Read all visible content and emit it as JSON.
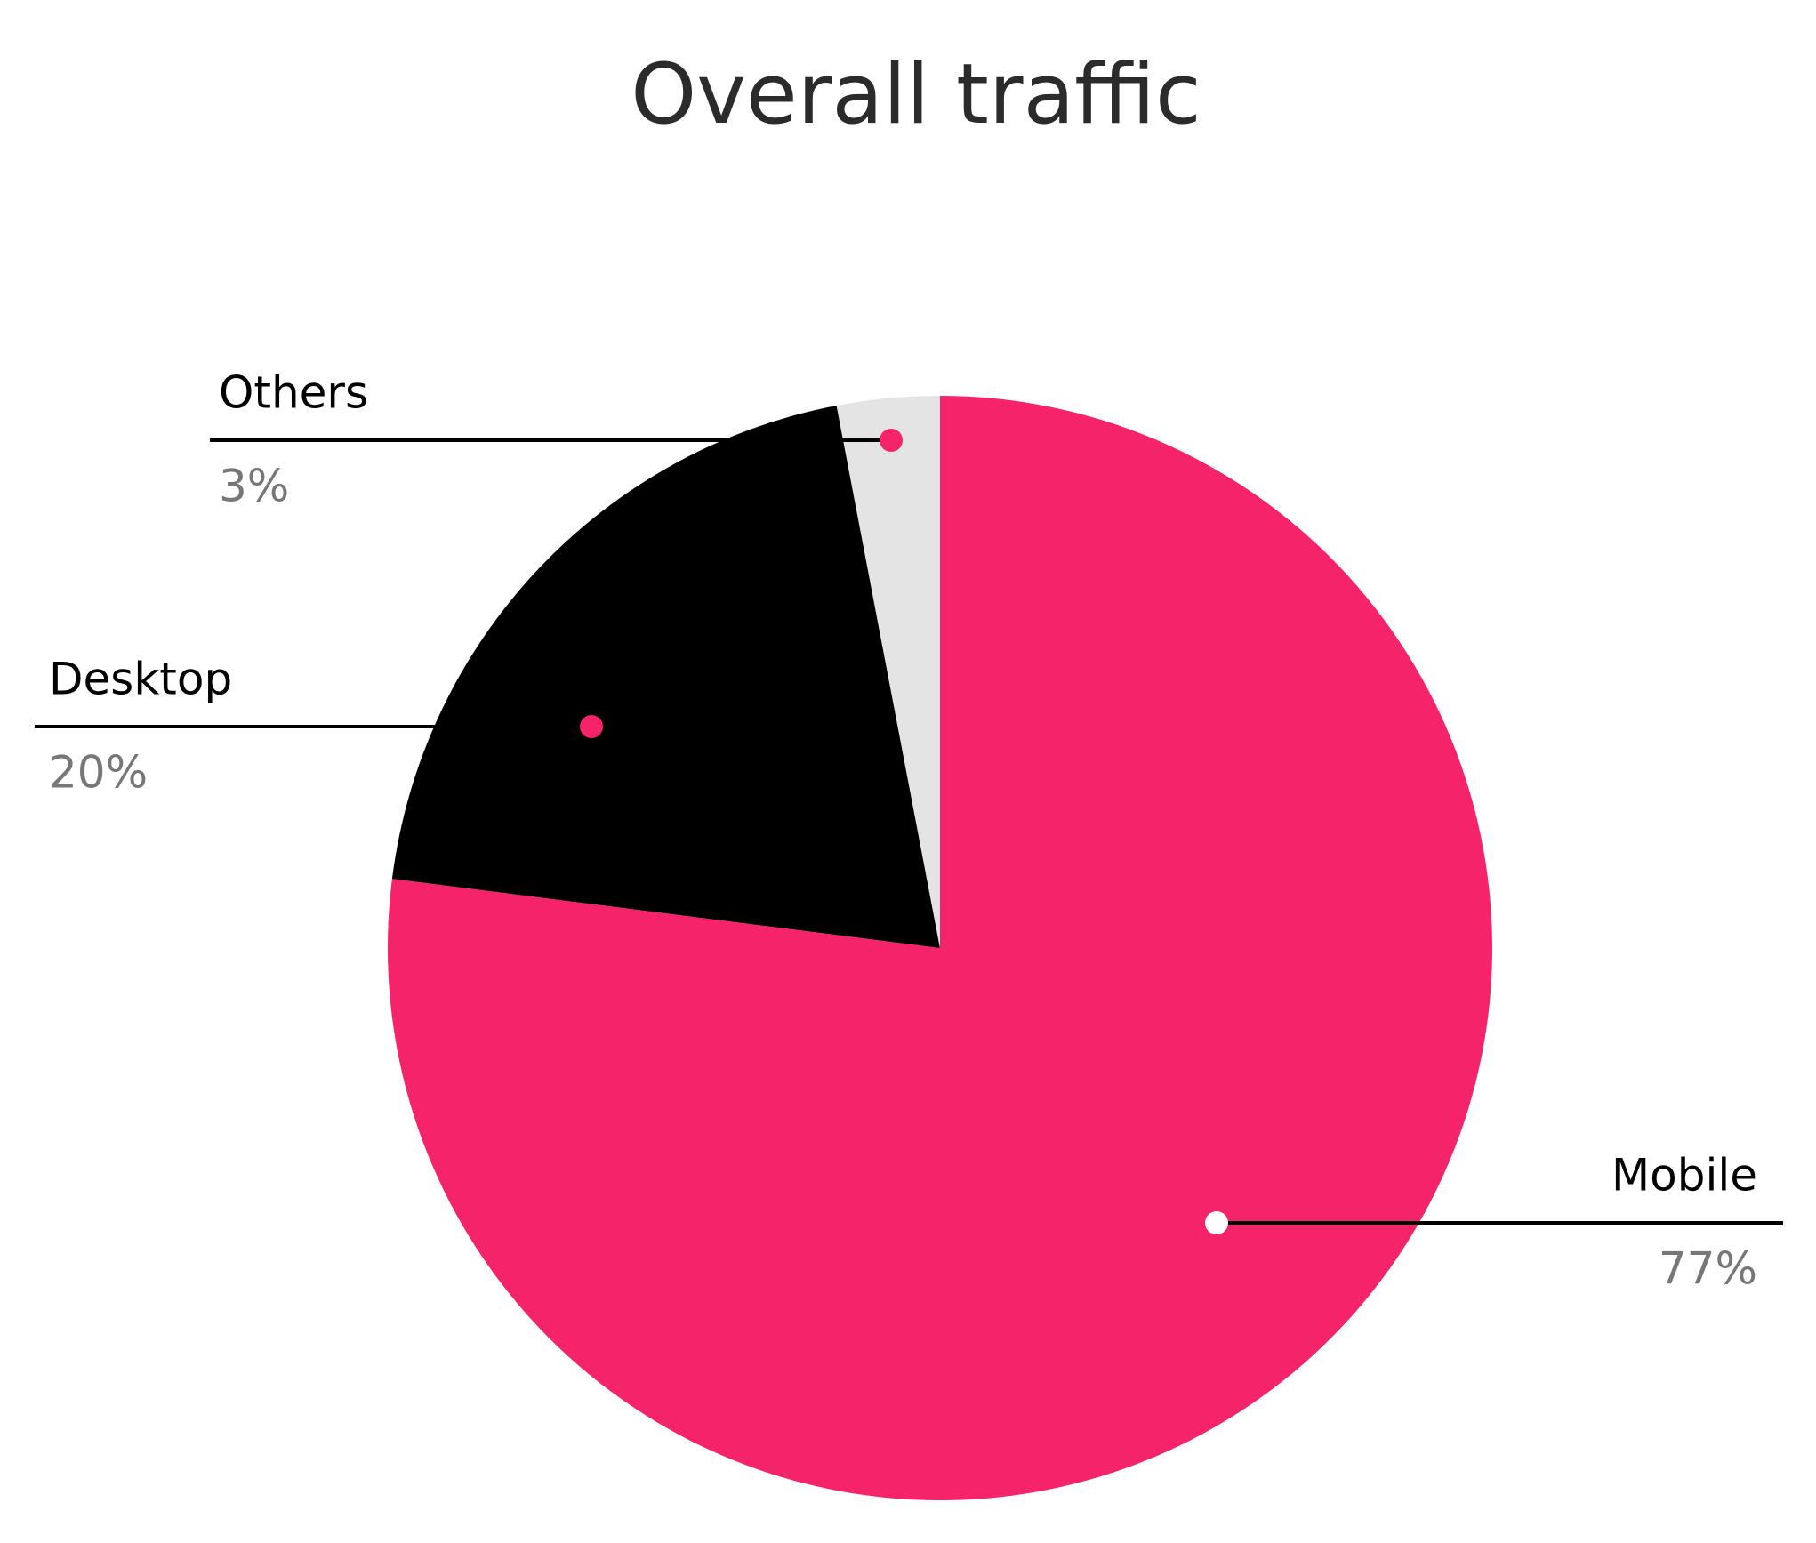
{
  "chart_data": {
    "type": "pie",
    "title": "Overall traffic",
    "categories": [
      "Mobile",
      "Desktop",
      "Others"
    ],
    "values": [
      77,
      20,
      3
    ],
    "value_labels": [
      "77%",
      "20%",
      "3%"
    ],
    "colors": [
      "#f5246a",
      "#000000",
      "#e4e4e4"
    ]
  }
}
